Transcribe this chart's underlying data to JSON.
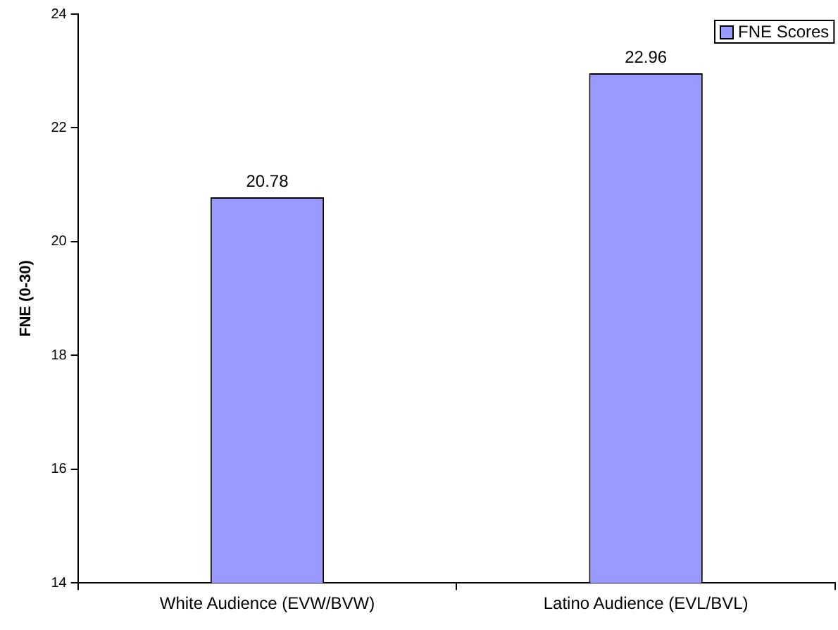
{
  "chart_data": {
    "type": "bar",
    "ylabel": "FNE (0-30)",
    "categories": [
      "White Audience (EVW/BVW)",
      "Latino Audience (EVL/BVL)"
    ],
    "series": [
      {
        "name": "FNE Scores",
        "color": "#9999ff",
        "values": [
          20.78,
          22.96
        ]
      }
    ],
    "ylim": [
      14,
      24
    ],
    "yticks": [
      14,
      16,
      18,
      20,
      22,
      24
    ],
    "grid": false,
    "legend": "top right",
    "data_labels": true
  }
}
